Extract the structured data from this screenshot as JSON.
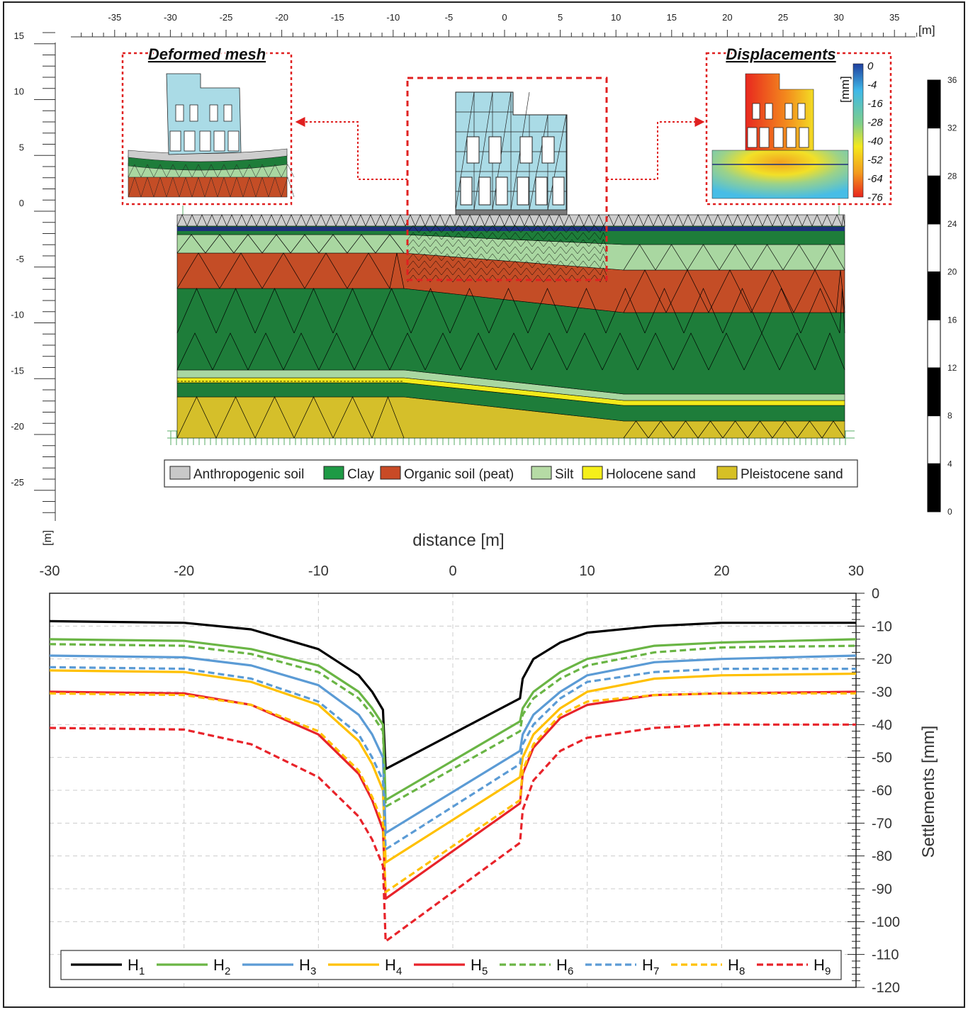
{
  "top_figure": {
    "x_ruler": {
      "unit": "[m]",
      "ticks": [
        -35,
        -30,
        -25,
        -20,
        -15,
        -10,
        -5,
        0,
        5,
        10,
        15,
        20,
        25,
        30,
        35
      ],
      "tick_labels": [
        "-35",
        "-30",
        "-25",
        "-20",
        "-15",
        "-10",
        "-5",
        "0",
        "5",
        "10",
        "15",
        "20",
        "25",
        "30",
        "35"
      ]
    },
    "y_ruler": {
      "unit": "[m]",
      "ticks": [
        15,
        10,
        5,
        0,
        -5,
        -10,
        -15,
        -20,
        -25
      ],
      "tick_labels": [
        "15",
        "10",
        "5",
        "0",
        "-5",
        "-10",
        "-15",
        "-20",
        "-25"
      ]
    },
    "right_scale": {
      "ticks": [
        36,
        32,
        28,
        24,
        20,
        16,
        12,
        8,
        4,
        0
      ],
      "tick_labels": [
        "36",
        "32",
        "28",
        "24",
        "20",
        "16",
        "12",
        "8",
        "4",
        "0"
      ]
    },
    "inset_left_title": "Deformed mesh",
    "inset_right_title": "Displacements",
    "colorbar": {
      "unit": "[mm]",
      "tick_labels": [
        "0",
        "-4",
        "-16",
        "-28",
        "-40",
        "-52",
        "-64",
        "-76"
      ]
    },
    "legend": [
      {
        "label": "Anthropogenic soil",
        "color": "#c8c8c8"
      },
      {
        "label": "Clay",
        "color": "#1e9a45"
      },
      {
        "label": "Organic soil (peat)",
        "color": "#c84a26"
      },
      {
        "label": "Silt",
        "color": "#b6dba5"
      },
      {
        "label": "Holocene sand",
        "color": "#f5ef1a"
      },
      {
        "label": "Pleistocene sand",
        "color": "#d6c025"
      }
    ],
    "colors": {
      "clay": "#1e7d3a",
      "peat": "#c44d26",
      "silt": "#a9d7a1",
      "anthropogenic": "#cdcdcd",
      "holocene_sand": "#f2ea1a",
      "pleistocene_sand": "#d5bf2a",
      "building": "#aadbe6",
      "dashed_box": "#e02020"
    }
  },
  "chart_data": {
    "type": "line",
    "xlabel": "distance [m]",
    "ylabel": "Settlements [mm]",
    "xlim": [
      -30,
      30
    ],
    "ylim": [
      -120,
      0
    ],
    "x_ticks": [
      -30,
      -20,
      -10,
      0,
      10,
      20,
      30
    ],
    "x_tick_labels": [
      "-30",
      "-20",
      "-10",
      "0",
      "10",
      "20",
      "30"
    ],
    "y_ticks": [
      0,
      -10,
      -20,
      -30,
      -40,
      -50,
      -60,
      -70,
      -80,
      -90,
      -100,
      -110,
      -120
    ],
    "y_tick_labels": [
      "0",
      "-10",
      "-20",
      "-30",
      "-40",
      "-50",
      "-60",
      "-70",
      "-80",
      "-90",
      "-100",
      "-110",
      "-120"
    ],
    "grid": true,
    "legend_position": "bottom",
    "series": [
      {
        "name": "H",
        "sub": "1",
        "color": "#000000",
        "dashed": false,
        "x": [
          -30,
          -20,
          -15,
          -10,
          -7,
          -6,
          -5.2,
          -5,
          5,
          5.2,
          6,
          8,
          10,
          15,
          20,
          30
        ],
        "y": [
          -8.5,
          -9,
          -11,
          -17,
          -25,
          -30,
          -35.5,
          -53.5,
          -32,
          -26,
          -20,
          -15,
          -12,
          -10,
          -9,
          -9
        ]
      },
      {
        "name": "H",
        "sub": "2",
        "color": "#6ab545",
        "dashed": false,
        "x": [
          -30,
          -20,
          -15,
          -10,
          -7,
          -6,
          -5.2,
          -5,
          5,
          5.2,
          6,
          8,
          10,
          15,
          20,
          30
        ],
        "y": [
          -14,
          -14.5,
          -17,
          -22,
          -30,
          -35,
          -40,
          -63,
          -39,
          -35,
          -30,
          -24,
          -20,
          -16,
          -15,
          -14
        ]
      },
      {
        "name": "H",
        "sub": "3",
        "color": "#5b9bd5",
        "dashed": false,
        "x": [
          -30,
          -20,
          -15,
          -10,
          -7,
          -6,
          -5.2,
          -5,
          5,
          5.2,
          6,
          8,
          10,
          15,
          20,
          30
        ],
        "y": [
          -19,
          -19.5,
          -22,
          -28,
          -37,
          -43,
          -50,
          -73,
          -48,
          -43,
          -37,
          -30,
          -25,
          -21,
          -20,
          -19
        ]
      },
      {
        "name": "H",
        "sub": "4",
        "color": "#ffc000",
        "dashed": false,
        "x": [
          -30,
          -20,
          -15,
          -10,
          -7,
          -6,
          -5.2,
          -5,
          5,
          5.2,
          6,
          8,
          10,
          15,
          20,
          30
        ],
        "y": [
          -23.5,
          -24,
          -27,
          -34,
          -45,
          -52,
          -60,
          -82,
          -56,
          -50,
          -43,
          -35,
          -30,
          -26,
          -25,
          -24.5
        ]
      },
      {
        "name": "H",
        "sub": "5",
        "color": "#e8232a",
        "dashed": false,
        "x": [
          -30,
          -20,
          -15,
          -10,
          -7,
          -6,
          -5.2,
          -5,
          5,
          5.2,
          6,
          8,
          10,
          15,
          20,
          30
        ],
        "y": [
          -30,
          -30.5,
          -34,
          -43,
          -55,
          -63,
          -72,
          -93,
          -64,
          -55,
          -47,
          -38,
          -34,
          -31,
          -30.5,
          -30
        ]
      },
      {
        "name": "H",
        "sub": "6",
        "color": "#6ab545",
        "dashed": true,
        "x": [
          -30,
          -20,
          -15,
          -10,
          -7,
          -6,
          -5.2,
          -5,
          5,
          5.2,
          6,
          8,
          10,
          15,
          20,
          30
        ],
        "y": [
          -15.5,
          -16,
          -18.5,
          -24,
          -32,
          -37,
          -42,
          -65,
          -42,
          -37,
          -32,
          -26,
          -22,
          -18,
          -16.5,
          -16
        ]
      },
      {
        "name": "H",
        "sub": "7",
        "color": "#5b9bd5",
        "dashed": true,
        "x": [
          -30,
          -20,
          -15,
          -10,
          -7,
          -6,
          -5.2,
          -5,
          5,
          5.2,
          6,
          8,
          10,
          15,
          20,
          30
        ],
        "y": [
          -22.5,
          -23,
          -26,
          -33,
          -43,
          -50,
          -57,
          -78,
          -52,
          -46,
          -40,
          -32,
          -27,
          -24,
          -23,
          -23
        ]
      },
      {
        "name": "H",
        "sub": "8",
        "color": "#ffc000",
        "dashed": true,
        "x": [
          -30,
          -20,
          -15,
          -10,
          -7,
          -6,
          -5.2,
          -5,
          5,
          5.2,
          6,
          8,
          10,
          15,
          20,
          30
        ],
        "y": [
          -30.5,
          -31,
          -34,
          -42,
          -54,
          -62,
          -70,
          -91,
          -63,
          -54,
          -46,
          -37,
          -33,
          -31,
          -30.5,
          -30.5
        ]
      },
      {
        "name": "H",
        "sub": "9",
        "color": "#e8232a",
        "dashed": true,
        "x": [
          -30,
          -20,
          -15,
          -10,
          -7,
          -6,
          -5.2,
          -5,
          5,
          5.2,
          6,
          8,
          10,
          15,
          20,
          30
        ],
        "y": [
          -41,
          -41.5,
          -46,
          -56,
          -68,
          -75,
          -83,
          -106,
          -76,
          -66,
          -57,
          -48,
          -44,
          -41,
          -40,
          -40
        ]
      }
    ]
  }
}
